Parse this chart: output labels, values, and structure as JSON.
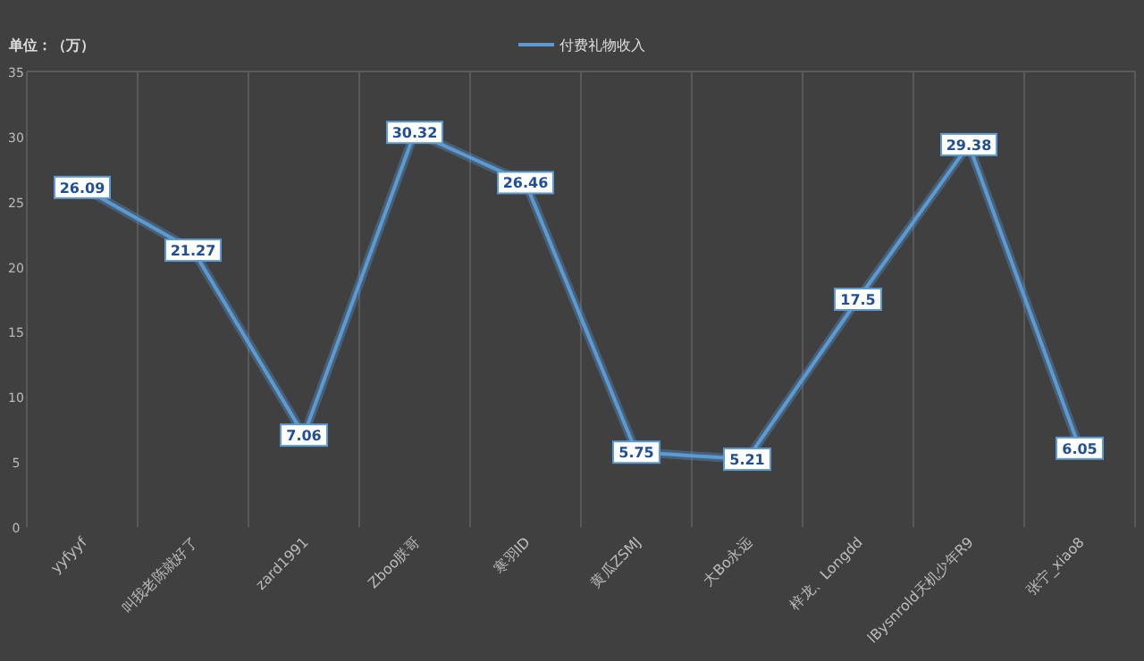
{
  "chart_data": {
    "type": "line",
    "ylabel": "单位：（万）",
    "categories": [
      "yyfyyf",
      "叫我老陈就好了",
      "zard1991",
      "Zboo朕哥",
      "寒羽ID",
      "黄瓜ZSMJ",
      "大Bo永远",
      "梓龙、Longdd",
      "lBysnrold天机少年R9",
      "张宁_xiao8"
    ],
    "series": [
      {
        "name": "付费礼物收入",
        "color": "#5b9bd5",
        "values": [
          26.09,
          21.27,
          7.06,
          30.32,
          26.46,
          5.75,
          5.21,
          17.5,
          29.38,
          6.05
        ]
      }
    ],
    "ylim": [
      0,
      35
    ],
    "yticks": [
      0,
      5,
      10,
      15,
      20,
      25,
      30,
      35
    ],
    "grid": "x",
    "legend": "top",
    "data_labels": true,
    "marker": "square",
    "line_style": "solid"
  }
}
